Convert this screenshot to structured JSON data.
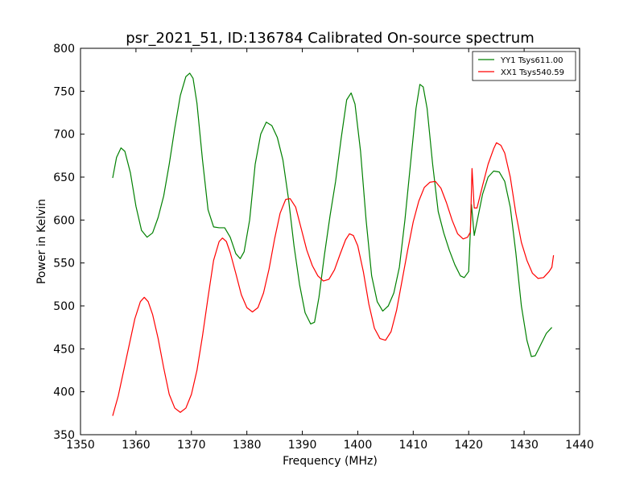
{
  "chart_data": {
    "type": "line",
    "title": "psr_2021_51, ID:136784 Calibrated On-source spectrum",
    "xlabel": "Frequency (MHz)",
    "ylabel": "Power in Kelvin",
    "xlim": [
      1350,
      1440
    ],
    "ylim": [
      350,
      800
    ],
    "xticks": [
      1350,
      1360,
      1370,
      1380,
      1390,
      1400,
      1410,
      1420,
      1430,
      1440
    ],
    "yticks": [
      350,
      400,
      450,
      500,
      550,
      600,
      650,
      700,
      750,
      800
    ],
    "grid": false,
    "legend_position": "top-right",
    "series": [
      {
        "name": "YY1 Tsys611.00",
        "color": "#008000",
        "points": [
          [
            1355.8,
            649
          ],
          [
            1356.5,
            673
          ],
          [
            1357.3,
            684
          ],
          [
            1358.0,
            680
          ],
          [
            1359.0,
            655
          ],
          [
            1360.0,
            616
          ],
          [
            1361.0,
            588
          ],
          [
            1362.0,
            580
          ],
          [
            1363.0,
            585
          ],
          [
            1364.0,
            603
          ],
          [
            1365.0,
            628
          ],
          [
            1366.0,
            665
          ],
          [
            1367.0,
            707
          ],
          [
            1368.0,
            745
          ],
          [
            1369.0,
            767
          ],
          [
            1369.7,
            771
          ],
          [
            1370.3,
            765
          ],
          [
            1371.0,
            736
          ],
          [
            1372.0,
            670
          ],
          [
            1373.0,
            612
          ],
          [
            1374.0,
            592
          ],
          [
            1375.0,
            591
          ],
          [
            1376.0,
            591
          ],
          [
            1377.0,
            580
          ],
          [
            1378.0,
            561
          ],
          [
            1378.8,
            555
          ],
          [
            1379.5,
            563
          ],
          [
            1380.5,
            600
          ],
          [
            1381.5,
            665
          ],
          [
            1382.5,
            700
          ],
          [
            1383.5,
            714
          ],
          [
            1384.5,
            710
          ],
          [
            1385.5,
            696
          ],
          [
            1386.5,
            670
          ],
          [
            1387.5,
            625
          ],
          [
            1388.5,
            570
          ],
          [
            1389.5,
            525
          ],
          [
            1390.5,
            492
          ],
          [
            1391.5,
            479
          ],
          [
            1392.2,
            481
          ],
          [
            1393.0,
            510
          ],
          [
            1394.0,
            560
          ],
          [
            1395.0,
            605
          ],
          [
            1396.0,
            645
          ],
          [
            1397.0,
            695
          ],
          [
            1398.0,
            740
          ],
          [
            1398.8,
            748
          ],
          [
            1399.5,
            735
          ],
          [
            1400.5,
            680
          ],
          [
            1401.5,
            600
          ],
          [
            1402.5,
            535
          ],
          [
            1403.5,
            505
          ],
          [
            1404.5,
            494
          ],
          [
            1405.5,
            500
          ],
          [
            1406.5,
            515
          ],
          [
            1407.5,
            545
          ],
          [
            1408.5,
            600
          ],
          [
            1409.5,
            665
          ],
          [
            1410.5,
            730
          ],
          [
            1411.2,
            758
          ],
          [
            1411.8,
            755
          ],
          [
            1412.5,
            730
          ],
          [
            1413.5,
            665
          ],
          [
            1414.5,
            610
          ],
          [
            1415.5,
            585
          ],
          [
            1416.5,
            565
          ],
          [
            1417.5,
            548
          ],
          [
            1418.5,
            535
          ],
          [
            1419.2,
            533
          ],
          [
            1420.0,
            540
          ],
          [
            1420.5,
            618
          ],
          [
            1421.0,
            582
          ],
          [
            1421.5,
            598
          ],
          [
            1422.5,
            630
          ],
          [
            1423.5,
            650
          ],
          [
            1424.5,
            657
          ],
          [
            1425.5,
            656
          ],
          [
            1426.5,
            645
          ],
          [
            1427.5,
            615
          ],
          [
            1428.5,
            562
          ],
          [
            1429.5,
            500
          ],
          [
            1430.5,
            460
          ],
          [
            1431.3,
            441
          ],
          [
            1432.0,
            442
          ],
          [
            1433.0,
            455
          ],
          [
            1434.0,
            468
          ],
          [
            1435.0,
            475
          ]
        ]
      },
      {
        "name": "XX1 Tsys540.59",
        "color": "#ff0000",
        "points": [
          [
            1355.8,
            372
          ],
          [
            1356.8,
            395
          ],
          [
            1357.8,
            425
          ],
          [
            1358.8,
            455
          ],
          [
            1359.8,
            485
          ],
          [
            1360.8,
            505
          ],
          [
            1361.5,
            510
          ],
          [
            1362.2,
            505
          ],
          [
            1363.0,
            490
          ],
          [
            1364.0,
            462
          ],
          [
            1365.0,
            428
          ],
          [
            1366.0,
            397
          ],
          [
            1367.0,
            381
          ],
          [
            1368.0,
            376
          ],
          [
            1369.0,
            381
          ],
          [
            1370.0,
            397
          ],
          [
            1371.0,
            425
          ],
          [
            1372.0,
            465
          ],
          [
            1373.0,
            510
          ],
          [
            1374.0,
            553
          ],
          [
            1375.0,
            575
          ],
          [
            1375.6,
            579
          ],
          [
            1376.3,
            575
          ],
          [
            1377.0,
            562
          ],
          [
            1378.0,
            538
          ],
          [
            1379.0,
            513
          ],
          [
            1380.0,
            498
          ],
          [
            1381.0,
            493
          ],
          [
            1382.0,
            498
          ],
          [
            1383.0,
            515
          ],
          [
            1384.0,
            543
          ],
          [
            1385.0,
            578
          ],
          [
            1386.0,
            608
          ],
          [
            1387.0,
            624
          ],
          [
            1387.8,
            625
          ],
          [
            1388.8,
            615
          ],
          [
            1389.8,
            590
          ],
          [
            1390.8,
            565
          ],
          [
            1391.8,
            547
          ],
          [
            1392.8,
            535
          ],
          [
            1393.8,
            529
          ],
          [
            1394.8,
            531
          ],
          [
            1395.8,
            542
          ],
          [
            1396.8,
            560
          ],
          [
            1397.8,
            577
          ],
          [
            1398.5,
            584
          ],
          [
            1399.2,
            582
          ],
          [
            1400.0,
            570
          ],
          [
            1401.0,
            540
          ],
          [
            1402.0,
            502
          ],
          [
            1403.0,
            474
          ],
          [
            1404.0,
            462
          ],
          [
            1405.0,
            460
          ],
          [
            1406.0,
            470
          ],
          [
            1407.0,
            495
          ],
          [
            1408.0,
            530
          ],
          [
            1409.0,
            565
          ],
          [
            1410.0,
            598
          ],
          [
            1411.0,
            622
          ],
          [
            1412.0,
            638
          ],
          [
            1413.0,
            644
          ],
          [
            1414.0,
            645
          ],
          [
            1415.0,
            637
          ],
          [
            1416.0,
            620
          ],
          [
            1417.0,
            600
          ],
          [
            1418.0,
            584
          ],
          [
            1419.0,
            578
          ],
          [
            1419.8,
            580
          ],
          [
            1420.3,
            586
          ],
          [
            1420.6,
            660
          ],
          [
            1421.0,
            614
          ],
          [
            1421.5,
            614
          ],
          [
            1422.5,
            640
          ],
          [
            1423.5,
            665
          ],
          [
            1424.5,
            683
          ],
          [
            1425.0,
            690
          ],
          [
            1425.8,
            687
          ],
          [
            1426.5,
            678
          ],
          [
            1427.5,
            650
          ],
          [
            1428.5,
            608
          ],
          [
            1429.5,
            574
          ],
          [
            1430.5,
            553
          ],
          [
            1431.5,
            538
          ],
          [
            1432.5,
            532
          ],
          [
            1433.5,
            533
          ],
          [
            1434.5,
            540
          ],
          [
            1435.0,
            545
          ],
          [
            1435.3,
            559
          ]
        ]
      }
    ]
  }
}
